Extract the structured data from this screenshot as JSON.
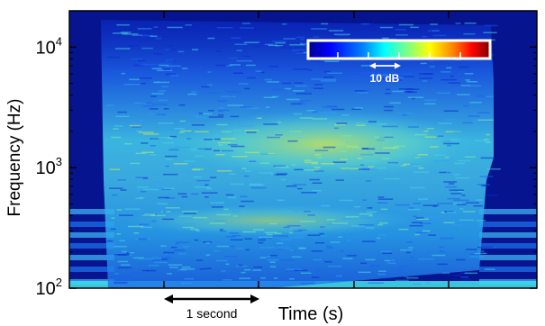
{
  "chart_data": {
    "type": "heatmap",
    "title": "",
    "xlabel": "Time (s)",
    "ylabel": "Frequency (Hz)",
    "y_scale": "log",
    "ylim": [
      100,
      20000
    ],
    "yticks": [
      {
        "base": "10",
        "exp": "2",
        "value": 100
      },
      {
        "base": "10",
        "exp": "3",
        "value": 1000
      },
      {
        "base": "10",
        "exp": "4",
        "value": 10000
      }
    ],
    "x_tick_labels": [],
    "x_scale_bar": {
      "label": "1 second",
      "duration_s": 1
    },
    "colorbar": {
      "label": "10 dB",
      "colormap": "jet",
      "colors": [
        "#00008f",
        "#0000ff",
        "#0080ff",
        "#00ffff",
        "#80ff80",
        "#ffff00",
        "#ff8000",
        "#ff0000",
        "#800000"
      ],
      "scale_step_db": 10
    },
    "grid": false,
    "legend": "colorbar top-right"
  }
}
